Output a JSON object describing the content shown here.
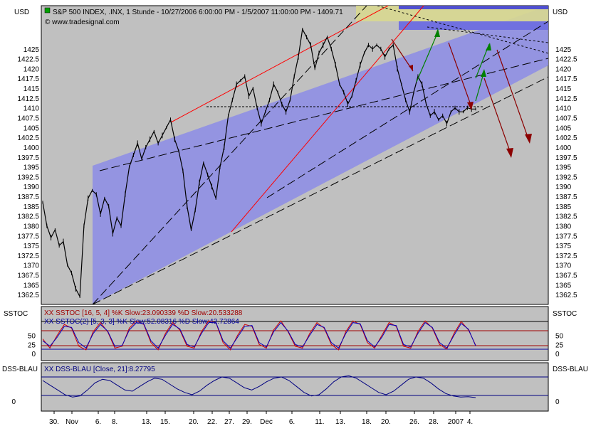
{
  "header": {
    "currency_left": "USD",
    "currency_right": "USD",
    "title": "S&P 500 INDEX, .INX, 1 Stunde - 10/27/2006 6:00:00 PM - 1/5/2007 11:00:00 PM - 1409.71",
    "copyright": "© www.tradesignal.com"
  },
  "colors": {
    "panel_bg": "#c0c0c0",
    "channel_fill": "#8c8ce6",
    "price_line": "#000000",
    "resistance_line": "#ff0000",
    "bear_arrow": "#8b0000",
    "bull_arrow": "#008000",
    "stoch_k": "#d00000",
    "stoch_d": "#0000c0",
    "dss": "#000080",
    "hband_yellow": "#d8d890",
    "hband_blue": "#7070e0"
  },
  "chart_data": [
    {
      "type": "line",
      "panel": "price",
      "title": "S&P 500 INDEX, .INX, 1 Stunde - 10/27/2006 6:00:00 PM - 1/5/2007 11:00:00 PM - 1409.71",
      "ylabel": "USD",
      "ylim": [
        1360,
        1436
      ],
      "y_ticks": [
        "1425",
        "1422.5",
        "1420",
        "1417.5",
        "1415",
        "1412.5",
        "1410",
        "1407.5",
        "1405",
        "1402.5",
        "1400",
        "1397.5",
        "1395",
        "1392.5",
        "1390",
        "1387.5",
        "1385",
        "1382.5",
        "1380",
        "1377.5",
        "1375",
        "1372.5",
        "1370",
        "1367.5",
        "1365",
        "1362.5"
      ],
      "x_labels": [
        "30.",
        "Nov",
        "6.",
        "8.",
        "13.",
        "15.",
        "20.",
        "22.",
        "27.",
        "29.",
        "Dec",
        "6.",
        "11.",
        "13.",
        "18.",
        "20.",
        "26.",
        "28.",
        "2007",
        "4."
      ],
      "series": [
        {
          "x": [
            0,
            2,
            4,
            6,
            8,
            10,
            12,
            14,
            16,
            18,
            20,
            22,
            24,
            26,
            28,
            30,
            32,
            34,
            36,
            38,
            40,
            42,
            44,
            46,
            48,
            50,
            52,
            54,
            56,
            58,
            60,
            62,
            64,
            66,
            68,
            70,
            72,
            74,
            76,
            78,
            80,
            82,
            84,
            86,
            88,
            90,
            92,
            94,
            96,
            98,
            100,
            102,
            104,
            106,
            108,
            110,
            112,
            114,
            116,
            118,
            120,
            122,
            124,
            126,
            128,
            130,
            132,
            134,
            136,
            138,
            140,
            142,
            144,
            146,
            148,
            150,
            152,
            154,
            156,
            158,
            160,
            162,
            164,
            166,
            168,
            170,
            172,
            174,
            176,
            178,
            180,
            182,
            184,
            186,
            188,
            190,
            192,
            194,
            196,
            198,
            200,
            202,
            204,
            206,
            208,
            210
          ],
          "values": [
            1386,
            1380,
            1377,
            1379,
            1375,
            1376,
            1370,
            1368,
            1364,
            1362,
            1380,
            1387,
            1389,
            1388,
            1383,
            1387,
            1385,
            1378,
            1382,
            1380,
            1388,
            1395,
            1398,
            1401,
            1397,
            1400,
            1402,
            1404,
            1401,
            1403,
            1405,
            1407,
            1402,
            1399,
            1394,
            1385,
            1379,
            1384,
            1391,
            1396,
            1393,
            1390,
            1387,
            1395,
            1400,
            1408,
            1412,
            1416,
            1417,
            1418,
            1413,
            1415,
            1410,
            1406,
            1409,
            1412,
            1416,
            1414,
            1411,
            1409,
            1412,
            1418,
            1423,
            1430,
            1428,
            1426,
            1420,
            1424,
            1426,
            1428,
            1425,
            1421,
            1416,
            1414,
            1411,
            1413,
            1417,
            1421,
            1424,
            1426,
            1425,
            1426,
            1425,
            1423,
            1425,
            1426,
            1420,
            1416,
            1412,
            1409,
            1414,
            1418,
            1416,
            1411,
            1408,
            1409,
            1407,
            1408,
            1406,
            1409,
            1410,
            1409,
            1409,
            1410,
            1409.71,
            1409.71
          ]
        }
      ],
      "annotations": {
        "horizontal_level": 1407.5,
        "last_price": 1409.71
      }
    },
    {
      "type": "line",
      "panel": "ssstoc",
      "title": "SSTOC",
      "legend": [
        "XX SSTOC [16, 5, 4] %K Slow:23.090339 %D Slow:20.533288",
        "XX SSTOC(2) [5, 3, 3] %K Slow:52.08316 %D Slow:42.72864"
      ],
      "ylim": [
        0,
        100
      ],
      "y_ticks": [
        "50",
        "25",
        "0"
      ],
      "series": [
        {
          "name": "%K Slow",
          "values": [
            40,
            15,
            50,
            80,
            70,
            20,
            10,
            60,
            85,
            60,
            15,
            20,
            70,
            90,
            80,
            30,
            10,
            55,
            85,
            65,
            20,
            15,
            60,
            90,
            85,
            30,
            10,
            50,
            80,
            75,
            25,
            15,
            65,
            90,
            60,
            20,
            15,
            55,
            85,
            70,
            25,
            10,
            60,
            90,
            80,
            30,
            15,
            50,
            85,
            75,
            20,
            15,
            60,
            90,
            70,
            25,
            12,
            55,
            88,
            65,
            23
          ]
        },
        {
          "name": "%D Slow",
          "values": [
            35,
            20,
            45,
            75,
            72,
            30,
            15,
            55,
            80,
            62,
            20,
            22,
            65,
            85,
            82,
            35,
            15,
            50,
            80,
            68,
            25,
            18,
            55,
            85,
            86,
            35,
            15,
            45,
            75,
            77,
            30,
            18,
            60,
            85,
            62,
            25,
            18,
            50,
            80,
            72,
            30,
            15,
            55,
            85,
            82,
            35,
            18,
            45,
            80,
            77,
            25,
            18,
            55,
            85,
            72,
            30,
            15,
            50,
            83,
            67,
            21
          ]
        }
      ]
    },
    {
      "type": "line",
      "panel": "dss",
      "title": "DSS-BLAU",
      "legend": [
        "XX DSS-BLAU [Close, 21]:8.27795"
      ],
      "ylim": [
        -10,
        110
      ],
      "y_ticks": [
        "0"
      ],
      "series": [
        {
          "name": "DSS-BLAU",
          "values": [
            80,
            60,
            40,
            20,
            10,
            15,
            40,
            70,
            85,
            80,
            60,
            40,
            35,
            55,
            75,
            90,
            85,
            65,
            45,
            30,
            20,
            35,
            60,
            80,
            95,
            90,
            70,
            50,
            40,
            55,
            75,
            90,
            95,
            80,
            55,
            30,
            15,
            20,
            45,
            75,
            95,
            100,
            90,
            70,
            50,
            30,
            20,
            35,
            60,
            85,
            95,
            90,
            70,
            45,
            25,
            15,
            10,
            12,
            8
          ]
        }
      ]
    }
  ],
  "oscillators": {
    "ssstoc_label_left": "SSTOC",
    "ssstoc_label_right": "SSTOC",
    "ssstoc_legend_1": "XX SSTOC [16, 5, 4] %K Slow:23.090339 %D Slow:20.533288",
    "ssstoc_legend_2": "XX SSTOC(2) [5, 3, 3] %K Slow:52.08316 %D Slow:42.72864",
    "dss_label_left": "DSS-BLAU",
    "dss_label_right": "DSS-BLAU",
    "dss_legend": "XX DSS-BLAU [Close, 21]:8.27795"
  }
}
